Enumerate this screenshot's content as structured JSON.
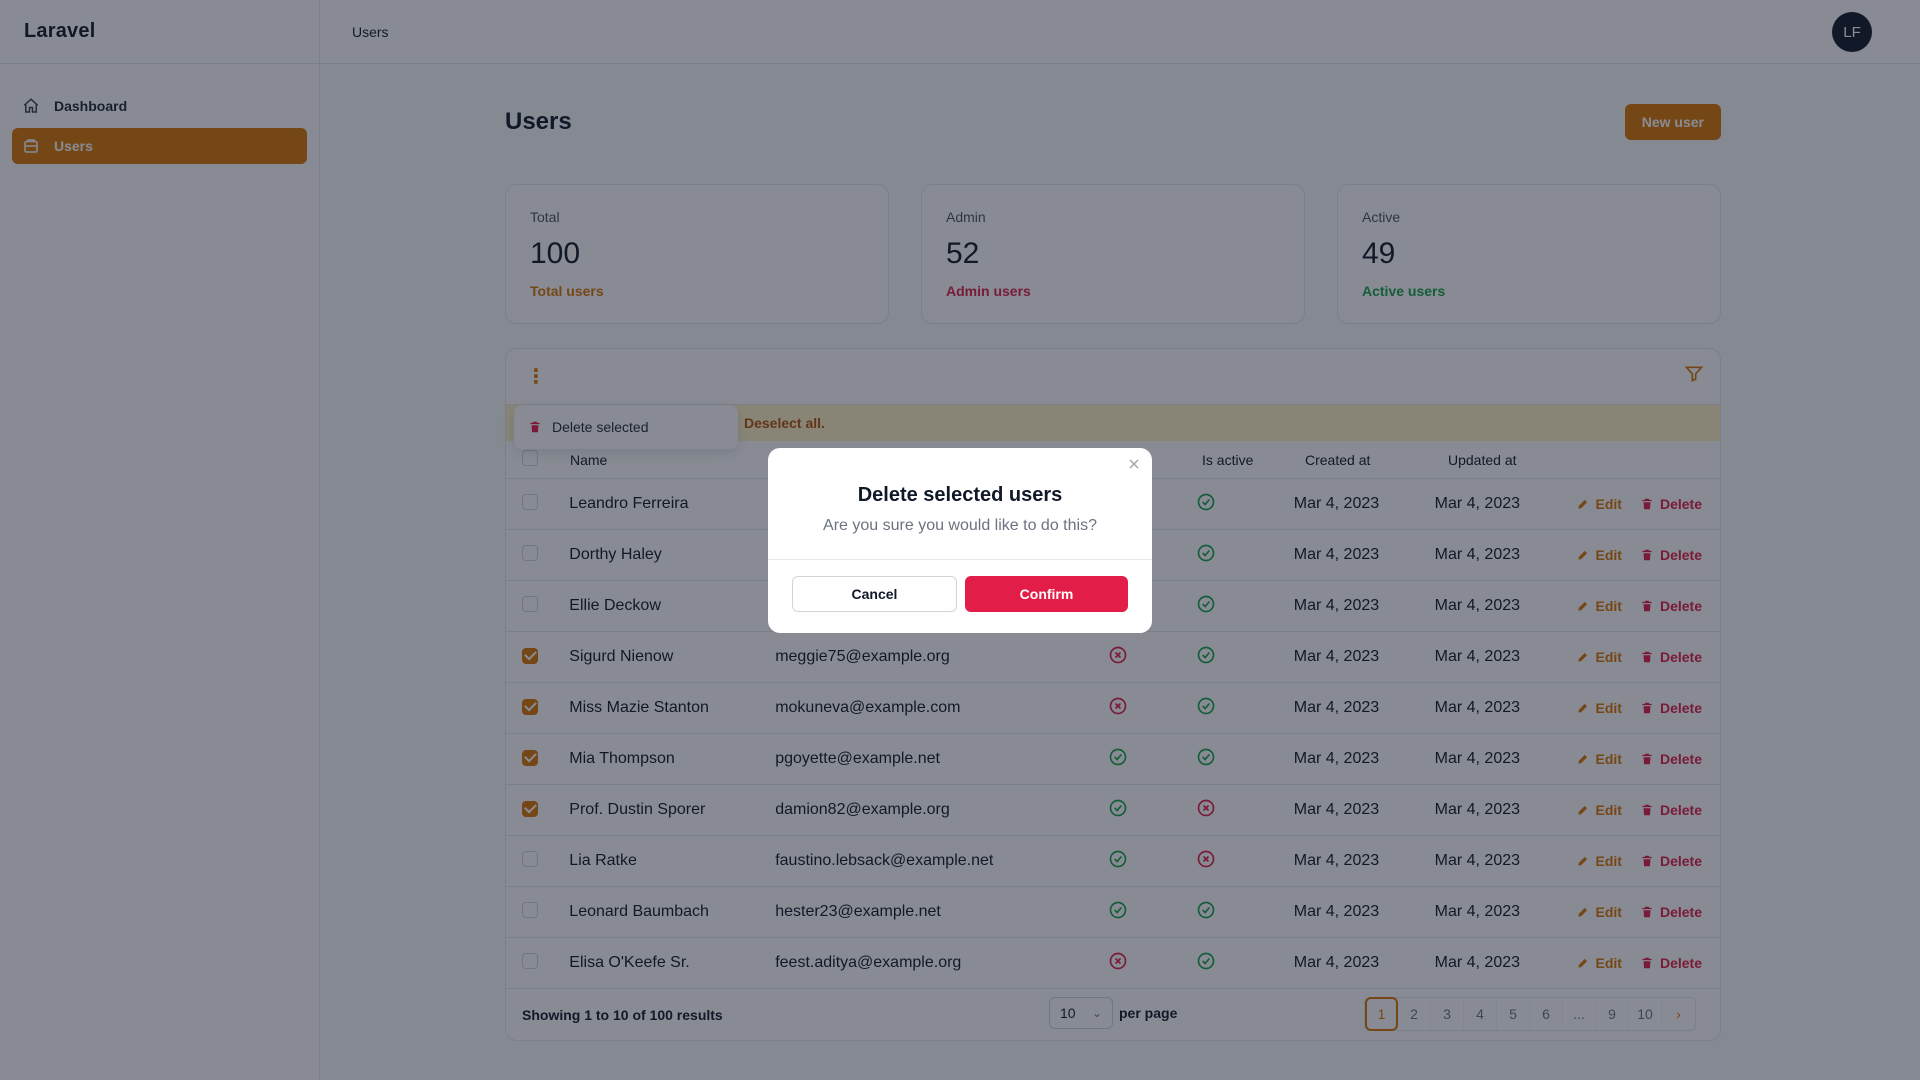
{
  "app": {
    "brand": "Laravel",
    "breadcrumb": "Users",
    "avatar_initials": "LF"
  },
  "sidebar": {
    "items": [
      {
        "label": "Dashboard",
        "icon": "home-icon",
        "active": false
      },
      {
        "label": "Users",
        "icon": "users-icon",
        "active": true
      }
    ]
  },
  "page": {
    "title": "Users",
    "new_user_label": "New user"
  },
  "stats": [
    {
      "label": "Total",
      "value": "100",
      "desc": "Total users",
      "color": "#d97706"
    },
    {
      "label": "Admin",
      "value": "52",
      "desc": "Admin users",
      "color": "#e11d48"
    },
    {
      "label": "Active",
      "value": "49",
      "desc": "Active users",
      "color": "#16a34a"
    }
  ],
  "bulk": {
    "delete_selected": "Delete selected",
    "deselect_all": "Deselect all."
  },
  "table": {
    "headers": {
      "name": "Name",
      "is_active": "Is active",
      "created_at": "Created at",
      "updated_at": "Updated at"
    },
    "edit_label": "Edit",
    "delete_label": "Delete",
    "rows": [
      {
        "checked": false,
        "name": "Leandro Ferreira",
        "email": "",
        "is_admin": null,
        "is_active": true,
        "created": "Mar 4, 2023",
        "updated": "Mar 4, 2023"
      },
      {
        "checked": false,
        "name": "Dorthy Haley",
        "email": "",
        "is_admin": null,
        "is_active": true,
        "created": "Mar 4, 2023",
        "updated": "Mar 4, 2023"
      },
      {
        "checked": false,
        "name": "Ellie Deckow",
        "email": "",
        "is_admin": null,
        "is_active": true,
        "created": "Mar 4, 2023",
        "updated": "Mar 4, 2023"
      },
      {
        "checked": true,
        "name": "Sigurd Nienow",
        "email": "meggie75@example.org",
        "is_admin": false,
        "is_active": true,
        "created": "Mar 4, 2023",
        "updated": "Mar 4, 2023"
      },
      {
        "checked": true,
        "name": "Miss Mazie Stanton",
        "email": "mokuneva@example.com",
        "is_admin": false,
        "is_active": true,
        "created": "Mar 4, 2023",
        "updated": "Mar 4, 2023"
      },
      {
        "checked": true,
        "name": "Mia Thompson",
        "email": "pgoyette@example.net",
        "is_admin": true,
        "is_active": true,
        "created": "Mar 4, 2023",
        "updated": "Mar 4, 2023"
      },
      {
        "checked": true,
        "name": "Prof. Dustin Sporer",
        "email": "damion82@example.org",
        "is_admin": true,
        "is_active": false,
        "created": "Mar 4, 2023",
        "updated": "Mar 4, 2023"
      },
      {
        "checked": false,
        "name": "Lia Ratke",
        "email": "faustino.lebsack@example.net",
        "is_admin": true,
        "is_active": false,
        "created": "Mar 4, 2023",
        "updated": "Mar 4, 2023"
      },
      {
        "checked": false,
        "name": "Leonard Baumbach",
        "email": "hester23@example.net",
        "is_admin": true,
        "is_active": true,
        "created": "Mar 4, 2023",
        "updated": "Mar 4, 2023"
      },
      {
        "checked": false,
        "name": "Elisa O'Keefe Sr.",
        "email": "feest.aditya@example.org",
        "is_admin": false,
        "is_active": true,
        "created": "Mar 4, 2023",
        "updated": "Mar 4, 2023"
      }
    ]
  },
  "footer": {
    "showing": "Showing 1 to 10 of 100 results",
    "per_page_value": "10",
    "per_page_label": "per page",
    "pages": [
      "1",
      "2",
      "3",
      "4",
      "5",
      "6",
      "...",
      "9",
      "10"
    ]
  },
  "modal": {
    "title": "Delete selected users",
    "text": "Are you sure you would like to do this?",
    "cancel": "Cancel",
    "confirm": "Confirm"
  },
  "colors": {
    "primary": "#d97706",
    "danger": "#e11d48",
    "success": "#16a34a"
  }
}
